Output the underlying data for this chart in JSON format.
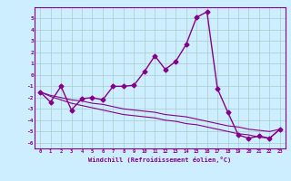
{
  "background_color": "#cceeff",
  "grid_color": "#aacccc",
  "line_color": "#880088",
  "xlabel": "Windchill (Refroidissement éolien,°C)",
  "xlim": [
    -0.5,
    23.5
  ],
  "ylim": [
    -6.5,
    6.0
  ],
  "yticks": [
    -6,
    -5,
    -4,
    -3,
    -2,
    -1,
    0,
    1,
    2,
    3,
    4,
    5
  ],
  "xticks": [
    0,
    1,
    2,
    3,
    4,
    5,
    6,
    7,
    8,
    9,
    10,
    11,
    12,
    13,
    14,
    15,
    16,
    17,
    18,
    19,
    20,
    21,
    22,
    23
  ],
  "series": [
    {
      "x": [
        0,
        1,
        2,
        3,
        4,
        5,
        6,
        7,
        8,
        9,
        10,
        11,
        12,
        13,
        14,
        15,
        16,
        17,
        18,
        19,
        20,
        21,
        22,
        23
      ],
      "y": [
        -1.5,
        -2.4,
        -1.0,
        -3.1,
        -2.1,
        -2.0,
        -2.2,
        -1.0,
        -1.0,
        -0.9,
        0.3,
        1.7,
        0.5,
        1.2,
        2.7,
        5.1,
        5.6,
        -1.2,
        -3.3,
        -5.3,
        -5.6,
        -5.4,
        -5.6,
        -4.8
      ],
      "marker": "D",
      "markersize": 2.5,
      "linewidth": 1.0
    },
    {
      "x": [
        0,
        1,
        2,
        3,
        4,
        5,
        6,
        7,
        8,
        9,
        10,
        11,
        12,
        13,
        14,
        15,
        16,
        17,
        18,
        19,
        20,
        21,
        22,
        23
      ],
      "y": [
        -1.5,
        -1.8,
        -2.0,
        -2.2,
        -2.3,
        -2.5,
        -2.6,
        -2.8,
        -3.0,
        -3.1,
        -3.2,
        -3.3,
        -3.5,
        -3.6,
        -3.7,
        -3.9,
        -4.1,
        -4.3,
        -4.5,
        -4.6,
        -4.8,
        -4.9,
        -5.0,
        -4.8
      ],
      "marker": null,
      "markersize": 0,
      "linewidth": 0.8
    },
    {
      "x": [
        0,
        1,
        2,
        3,
        4,
        5,
        6,
        7,
        8,
        9,
        10,
        11,
        12,
        13,
        14,
        15,
        16,
        17,
        18,
        19,
        20,
        21,
        22,
        23
      ],
      "y": [
        -1.5,
        -1.9,
        -2.2,
        -2.5,
        -2.7,
        -2.9,
        -3.1,
        -3.3,
        -3.5,
        -3.6,
        -3.7,
        -3.8,
        -4.0,
        -4.1,
        -4.3,
        -4.4,
        -4.6,
        -4.8,
        -5.0,
        -5.2,
        -5.3,
        -5.5,
        -5.6,
        -4.8
      ],
      "marker": null,
      "markersize": 0,
      "linewidth": 0.8
    }
  ]
}
